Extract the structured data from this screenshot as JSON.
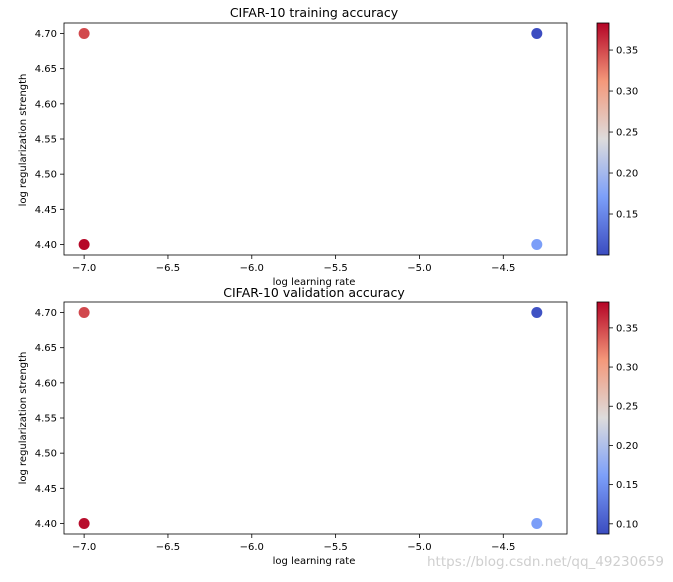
{
  "chart_data": [
    {
      "type": "scatter",
      "title": "CIFAR-10 training accuracy",
      "xlabel": "log learning rate",
      "ylabel": "log regularization strength",
      "xlim": [
        -7.12,
        -4.12
      ],
      "ylim": [
        4.385,
        4.715
      ],
      "x_ticks": [
        -7.0,
        -6.5,
        -6.0,
        -5.5,
        -5.0,
        -4.5
      ],
      "x_tick_labels": [
        "−7.0",
        "−6.5",
        "−6.0",
        "−5.5",
        "−5.0",
        "−4.5"
      ],
      "y_ticks": [
        4.4,
        4.45,
        4.5,
        4.55,
        4.6,
        4.65,
        4.7
      ],
      "y_tick_labels": [
        "4.40",
        "4.45",
        "4.50",
        "4.55",
        "4.60",
        "4.65",
        "4.70"
      ],
      "colormap": "coolwarm",
      "color_range": [
        0.1,
        0.383
      ],
      "colorbar_ticks": [
        0.15,
        0.2,
        0.25,
        0.3,
        0.35
      ],
      "colorbar_tick_labels": [
        "0.15",
        "0.20",
        "0.25",
        "0.30",
        "0.35"
      ],
      "points": [
        {
          "x": -7.0,
          "y": 4.7,
          "value": 0.35
        },
        {
          "x": -7.0,
          "y": 4.4,
          "value": 0.381
        },
        {
          "x": -4.3,
          "y": 4.7,
          "value": 0.101
        },
        {
          "x": -4.3,
          "y": 4.4,
          "value": 0.17
        }
      ]
    },
    {
      "type": "scatter",
      "title": "CIFAR-10 validation accuracy",
      "xlabel": "log learning rate",
      "ylabel": "log regularization strength",
      "xlim": [
        -7.12,
        -4.12
      ],
      "ylim": [
        4.385,
        4.715
      ],
      "x_ticks": [
        -7.0,
        -6.5,
        -6.0,
        -5.5,
        -5.0,
        -4.5
      ],
      "x_tick_labels": [
        "−7.0",
        "−6.5",
        "−6.0",
        "−5.5",
        "−5.0",
        "−4.5"
      ],
      "y_ticks": [
        4.4,
        4.45,
        4.5,
        4.55,
        4.6,
        4.65,
        4.7
      ],
      "y_tick_labels": [
        "4.40",
        "4.45",
        "4.50",
        "4.55",
        "4.60",
        "4.65",
        "4.70"
      ],
      "colormap": "coolwarm",
      "color_range": [
        0.087,
        0.383
      ],
      "colorbar_ticks": [
        0.1,
        0.15,
        0.2,
        0.25,
        0.3,
        0.35
      ],
      "colorbar_tick_labels": [
        "0.10",
        "0.15",
        "0.20",
        "0.25",
        "0.30",
        "0.35"
      ],
      "points": [
        {
          "x": -7.0,
          "y": 4.7,
          "value": 0.349
        },
        {
          "x": -7.0,
          "y": 4.4,
          "value": 0.378
        },
        {
          "x": -4.3,
          "y": 4.7,
          "value": 0.092
        },
        {
          "x": -4.3,
          "y": 4.4,
          "value": 0.16
        }
      ]
    }
  ],
  "watermark": "https://blog.csdn.net/qq_49230659"
}
